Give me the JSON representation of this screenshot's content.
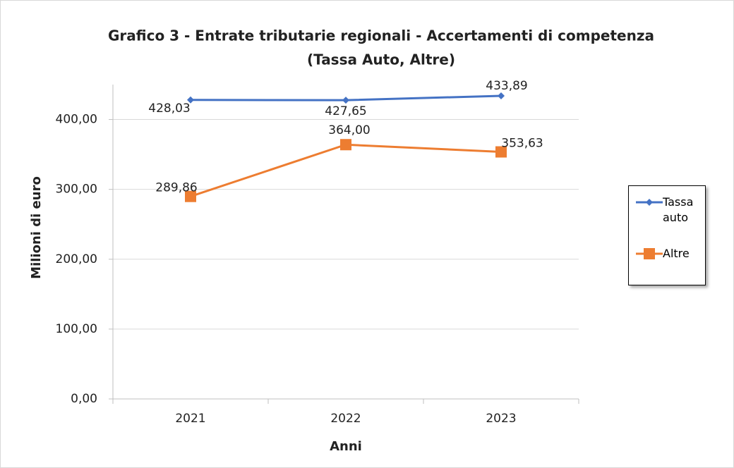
{
  "chart_data": {
    "type": "line",
    "title": [
      "Grafico 3 - Entrate tributarie regionali - Accertamenti di competenza",
      "(Tassa Auto, Altre)"
    ],
    "x_label": "Anni",
    "y_label": "Milioni di euro",
    "categories": [
      "2021",
      "2022",
      "2023"
    ],
    "series": [
      {
        "name": "Tassa auto",
        "color": "#4472c4",
        "marker": "diamond",
        "values": [
          428.03,
          427.65,
          433.89
        ],
        "value_labels": [
          "428,03",
          "427,65",
          "433,89"
        ]
      },
      {
        "name": "Altre",
        "color": "#ed7d31",
        "marker": "square",
        "values": [
          289.86,
          364.0,
          353.63
        ],
        "value_labels": [
          "289,86",
          "364,00",
          "353,63"
        ]
      }
    ],
    "ylim": [
      0,
      450
    ],
    "yticks": [
      {
        "value": 0,
        "label": "0,00"
      },
      {
        "value": 100,
        "label": "100,00"
      },
      {
        "value": 200,
        "label": "200,00"
      },
      {
        "value": 300,
        "label": "300,00"
      },
      {
        "value": 400,
        "label": "400,00"
      }
    ],
    "grid": true,
    "legend": "right"
  }
}
